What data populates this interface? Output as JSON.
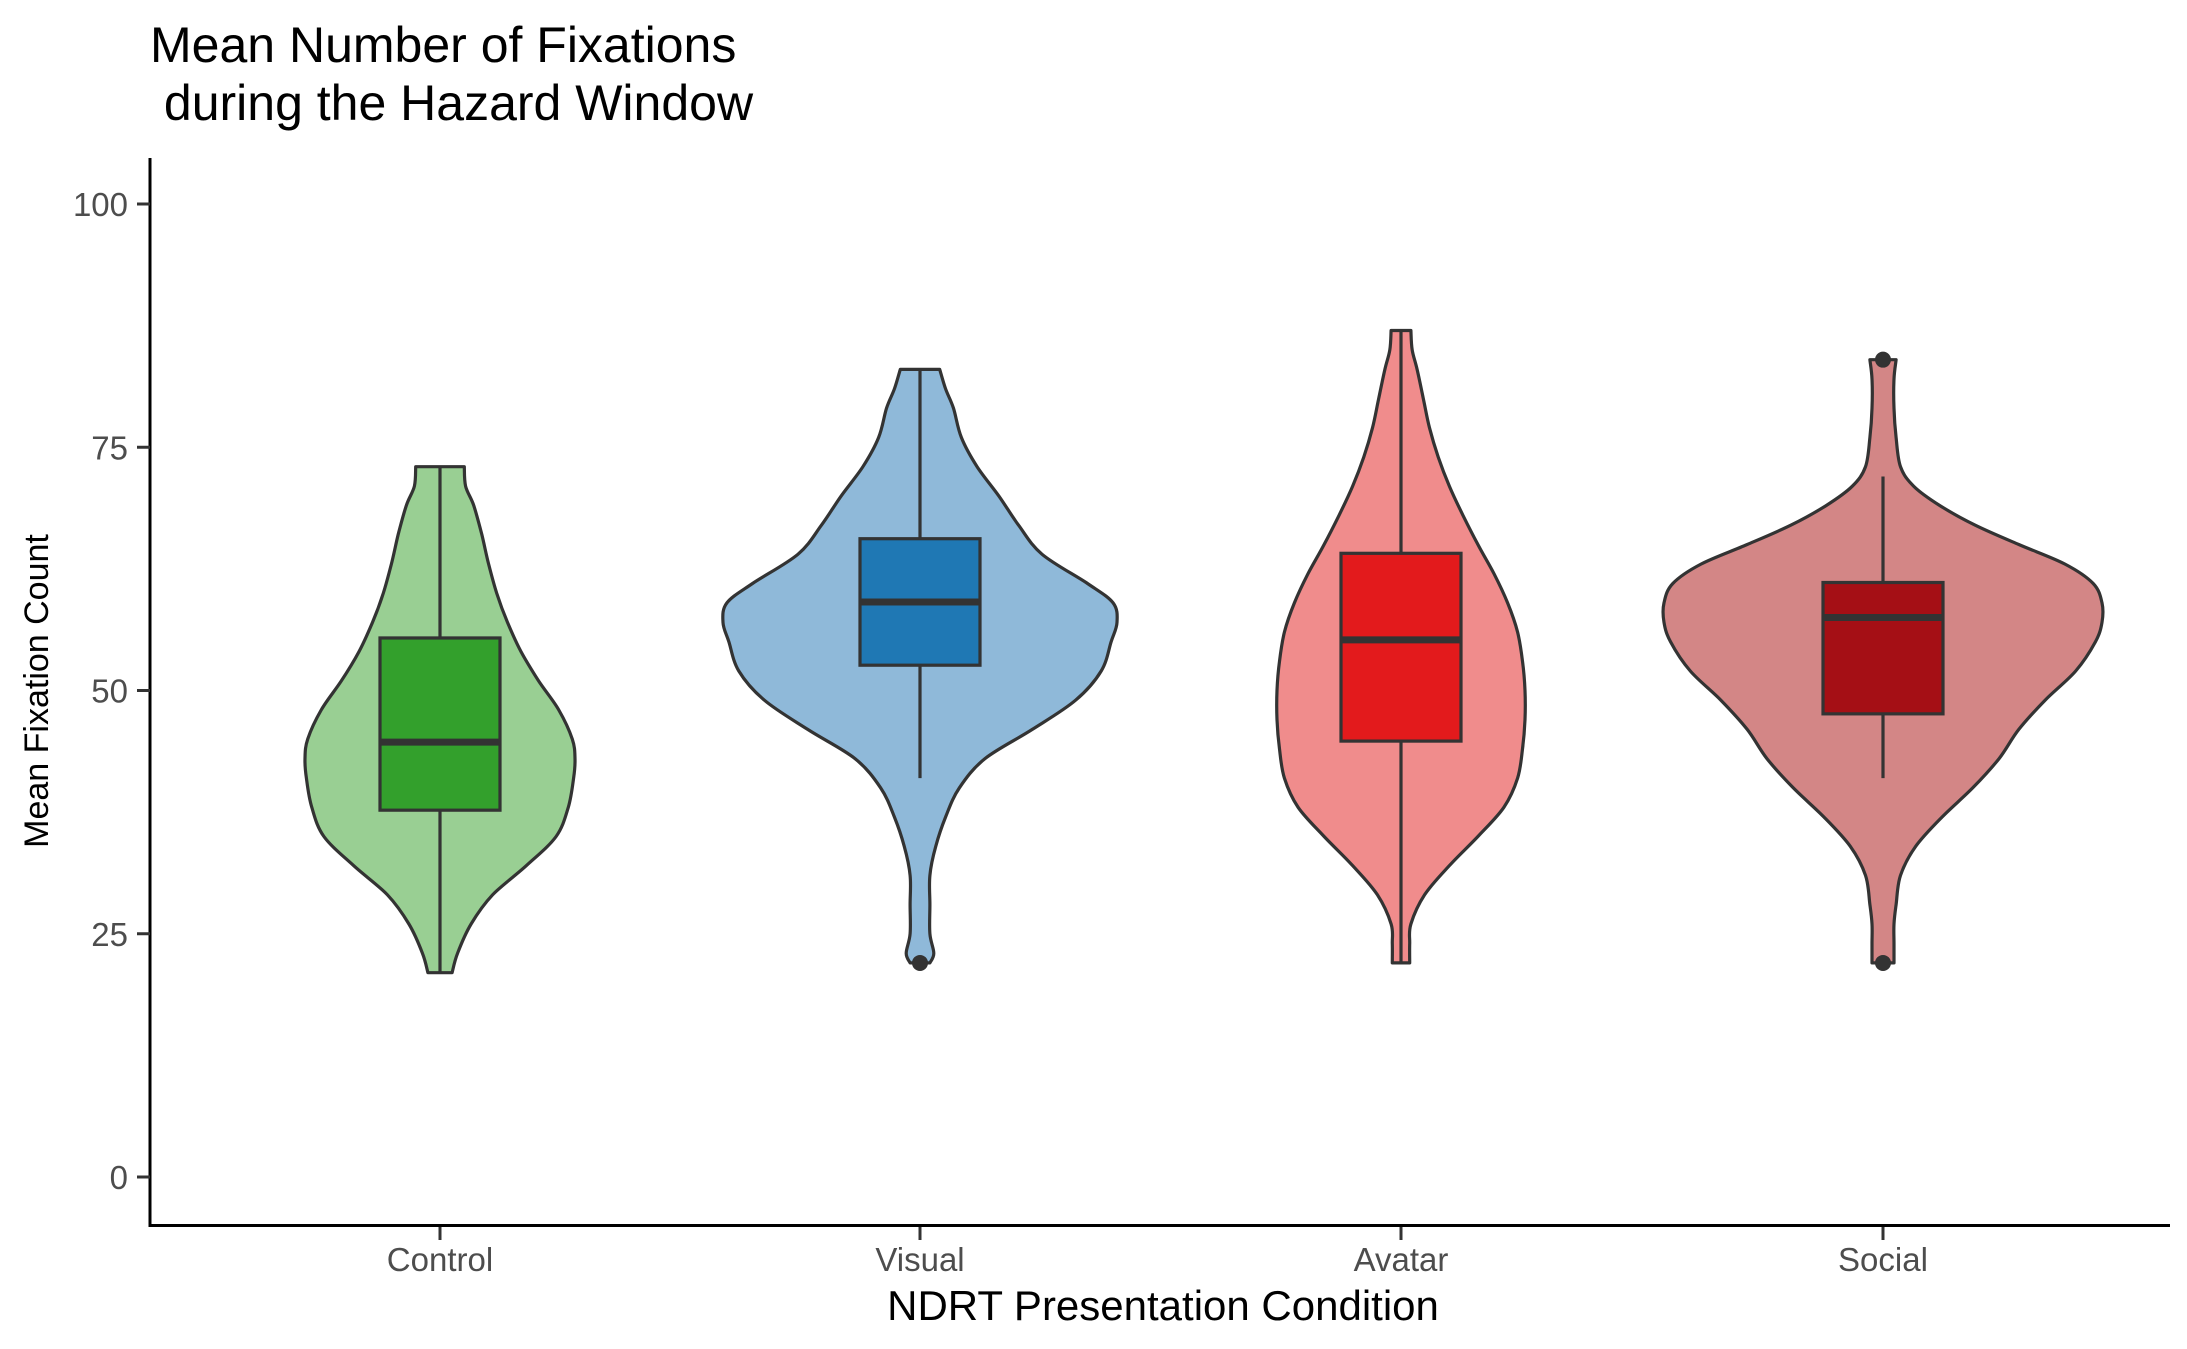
{
  "chart_data": {
    "type": "violin",
    "title_lines": [
      "Mean Number of Fixations",
      " during the Hazard Window"
    ],
    "xlabel": "NDRT Presentation Condition",
    "ylabel": "Mean Fixation Count",
    "ylim": [
      -5,
      105
    ],
    "yticks": [
      0,
      25,
      50,
      75,
      100
    ],
    "grid": false,
    "legend": "none",
    "categories": [
      "Control",
      "Visual",
      "Avatar",
      "Social"
    ],
    "groups": [
      {
        "name": "Control",
        "violin_color": "#99cf93",
        "box_color": "#33a02c",
        "box": {
          "min": 21,
          "q1": 37.7,
          "median": 44.7,
          "q3": 55.4,
          "max": 73
        },
        "outliers": [],
        "density": [
          [
            21,
            0.09
          ],
          [
            23,
            0.13
          ],
          [
            26,
            0.23
          ],
          [
            29,
            0.39
          ],
          [
            32,
            0.64
          ],
          [
            35,
            0.86
          ],
          [
            38,
            0.95
          ],
          [
            41,
            0.99
          ],
          [
            43,
            1.0
          ],
          [
            45,
            0.98
          ],
          [
            48,
            0.88
          ],
          [
            51,
            0.73
          ],
          [
            54,
            0.6
          ],
          [
            57,
            0.5
          ],
          [
            60,
            0.42
          ],
          [
            63,
            0.36
          ],
          [
            66,
            0.31
          ],
          [
            69,
            0.25
          ],
          [
            71,
            0.19
          ],
          [
            73,
            0.18
          ]
        ]
      },
      {
        "name": "Visual",
        "violin_color": "#8fb9d9",
        "box_color": "#1f78b4",
        "box": {
          "min": 41,
          "q1": 52.6,
          "median": 59.1,
          "q3": 65.6,
          "max": 83
        },
        "outliers": [
          22
        ],
        "density": [
          [
            22,
            0.05
          ],
          [
            23,
            0.07
          ],
          [
            25,
            0.05
          ],
          [
            28,
            0.05
          ],
          [
            31,
            0.05
          ],
          [
            34,
            0.08
          ],
          [
            37,
            0.13
          ],
          [
            40,
            0.2
          ],
          [
            43,
            0.33
          ],
          [
            46,
            0.57
          ],
          [
            49,
            0.79
          ],
          [
            52,
            0.92
          ],
          [
            55,
            0.97
          ],
          [
            57,
            1.0
          ],
          [
            59,
            0.98
          ],
          [
            61,
            0.85
          ],
          [
            64,
            0.62
          ],
          [
            67,
            0.5
          ],
          [
            70,
            0.4
          ],
          [
            73,
            0.29
          ],
          [
            76,
            0.21
          ],
          [
            79,
            0.17
          ],
          [
            81,
            0.13
          ],
          [
            83,
            0.1
          ]
        ]
      },
      {
        "name": "Avatar",
        "violin_color": "#f08c8c",
        "box_color": "#e31a1c",
        "box": {
          "min": 22,
          "q1": 44.8,
          "median": 55.2,
          "q3": 64.1,
          "max": 87
        },
        "outliers": [],
        "density": [
          [
            22,
            0.07
          ],
          [
            24,
            0.07
          ],
          [
            26,
            0.08
          ],
          [
            29,
            0.19
          ],
          [
            32,
            0.39
          ],
          [
            35,
            0.62
          ],
          [
            38,
            0.83
          ],
          [
            41,
            0.94
          ],
          [
            44,
            0.98
          ],
          [
            47,
            1.0
          ],
          [
            50,
            1.0
          ],
          [
            53,
            0.98
          ],
          [
            56,
            0.94
          ],
          [
            59,
            0.86
          ],
          [
            62,
            0.75
          ],
          [
            65,
            0.62
          ],
          [
            68,
            0.5
          ],
          [
            71,
            0.39
          ],
          [
            74,
            0.3
          ],
          [
            77,
            0.23
          ],
          [
            80,
            0.18
          ],
          [
            83,
            0.13
          ],
          [
            85,
            0.09
          ],
          [
            87,
            0.08
          ]
        ]
      },
      {
        "name": "Social",
        "violin_color": "#d38686",
        "box_color": "#a50f15",
        "box": {
          "min": 41,
          "q1": 47.6,
          "median": 57.5,
          "q3": 61.1,
          "max": 72
        },
        "outliers": [
          22,
          84
        ],
        "density": [
          [
            22,
            0.05
          ],
          [
            24,
            0.05
          ],
          [
            26,
            0.05
          ],
          [
            28,
            0.06
          ],
          [
            31,
            0.08
          ],
          [
            34,
            0.15
          ],
          [
            37,
            0.27
          ],
          [
            40,
            0.41
          ],
          [
            43,
            0.53
          ],
          [
            46,
            0.62
          ],
          [
            49,
            0.74
          ],
          [
            52,
            0.88
          ],
          [
            55,
            0.97
          ],
          [
            57,
            1.0
          ],
          [
            59,
            1.0
          ],
          [
            61,
            0.96
          ],
          [
            63,
            0.83
          ],
          [
            65,
            0.62
          ],
          [
            67,
            0.42
          ],
          [
            69,
            0.26
          ],
          [
            71,
            0.14
          ],
          [
            73,
            0.08
          ],
          [
            76,
            0.06
          ],
          [
            79,
            0.05
          ],
          [
            82,
            0.05
          ],
          [
            84,
            0.06
          ]
        ]
      }
    ]
  }
}
